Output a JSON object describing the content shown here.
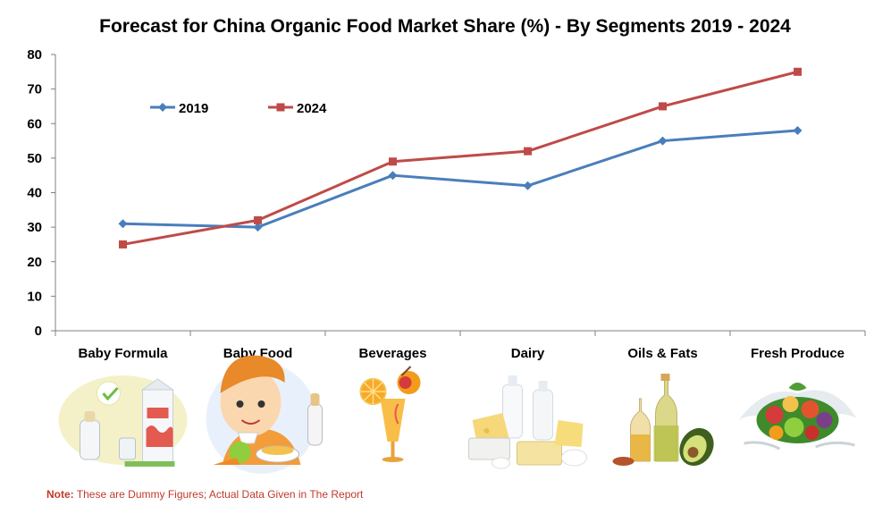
{
  "note": {
    "label": "Note:",
    "text": " These are Dummy Figures; Actual Data Given in The Report"
  },
  "colors": {
    "series_2019": "#4a7ebb",
    "series_2024": "#be4b48",
    "axis": "#808080"
  },
  "icons": [
    "baby-formula-icon",
    "baby-food-icon",
    "beverages-icon",
    "dairy-icon",
    "oils-fats-icon",
    "fresh-produce-icon"
  ],
  "chart_data": {
    "type": "line",
    "title": "Forecast for China Organic Food Market Share (%)  - By Segments 2019  - 2024",
    "categories": [
      "Baby Formula",
      "Baby Food",
      "Beverages",
      "Dairy",
      "Oils & Fats",
      "Fresh Produce"
    ],
    "series": [
      {
        "name": "2019",
        "values": [
          31,
          30,
          45,
          42,
          55,
          58
        ],
        "marker": "diamond"
      },
      {
        "name": "2024",
        "values": [
          25,
          32,
          49,
          52,
          65,
          75
        ],
        "marker": "square"
      }
    ],
    "ylim": [
      0,
      80
    ],
    "yticks": [
      0,
      10,
      20,
      30,
      40,
      50,
      60,
      70,
      80
    ],
    "grid": false,
    "legend": "top-left"
  }
}
